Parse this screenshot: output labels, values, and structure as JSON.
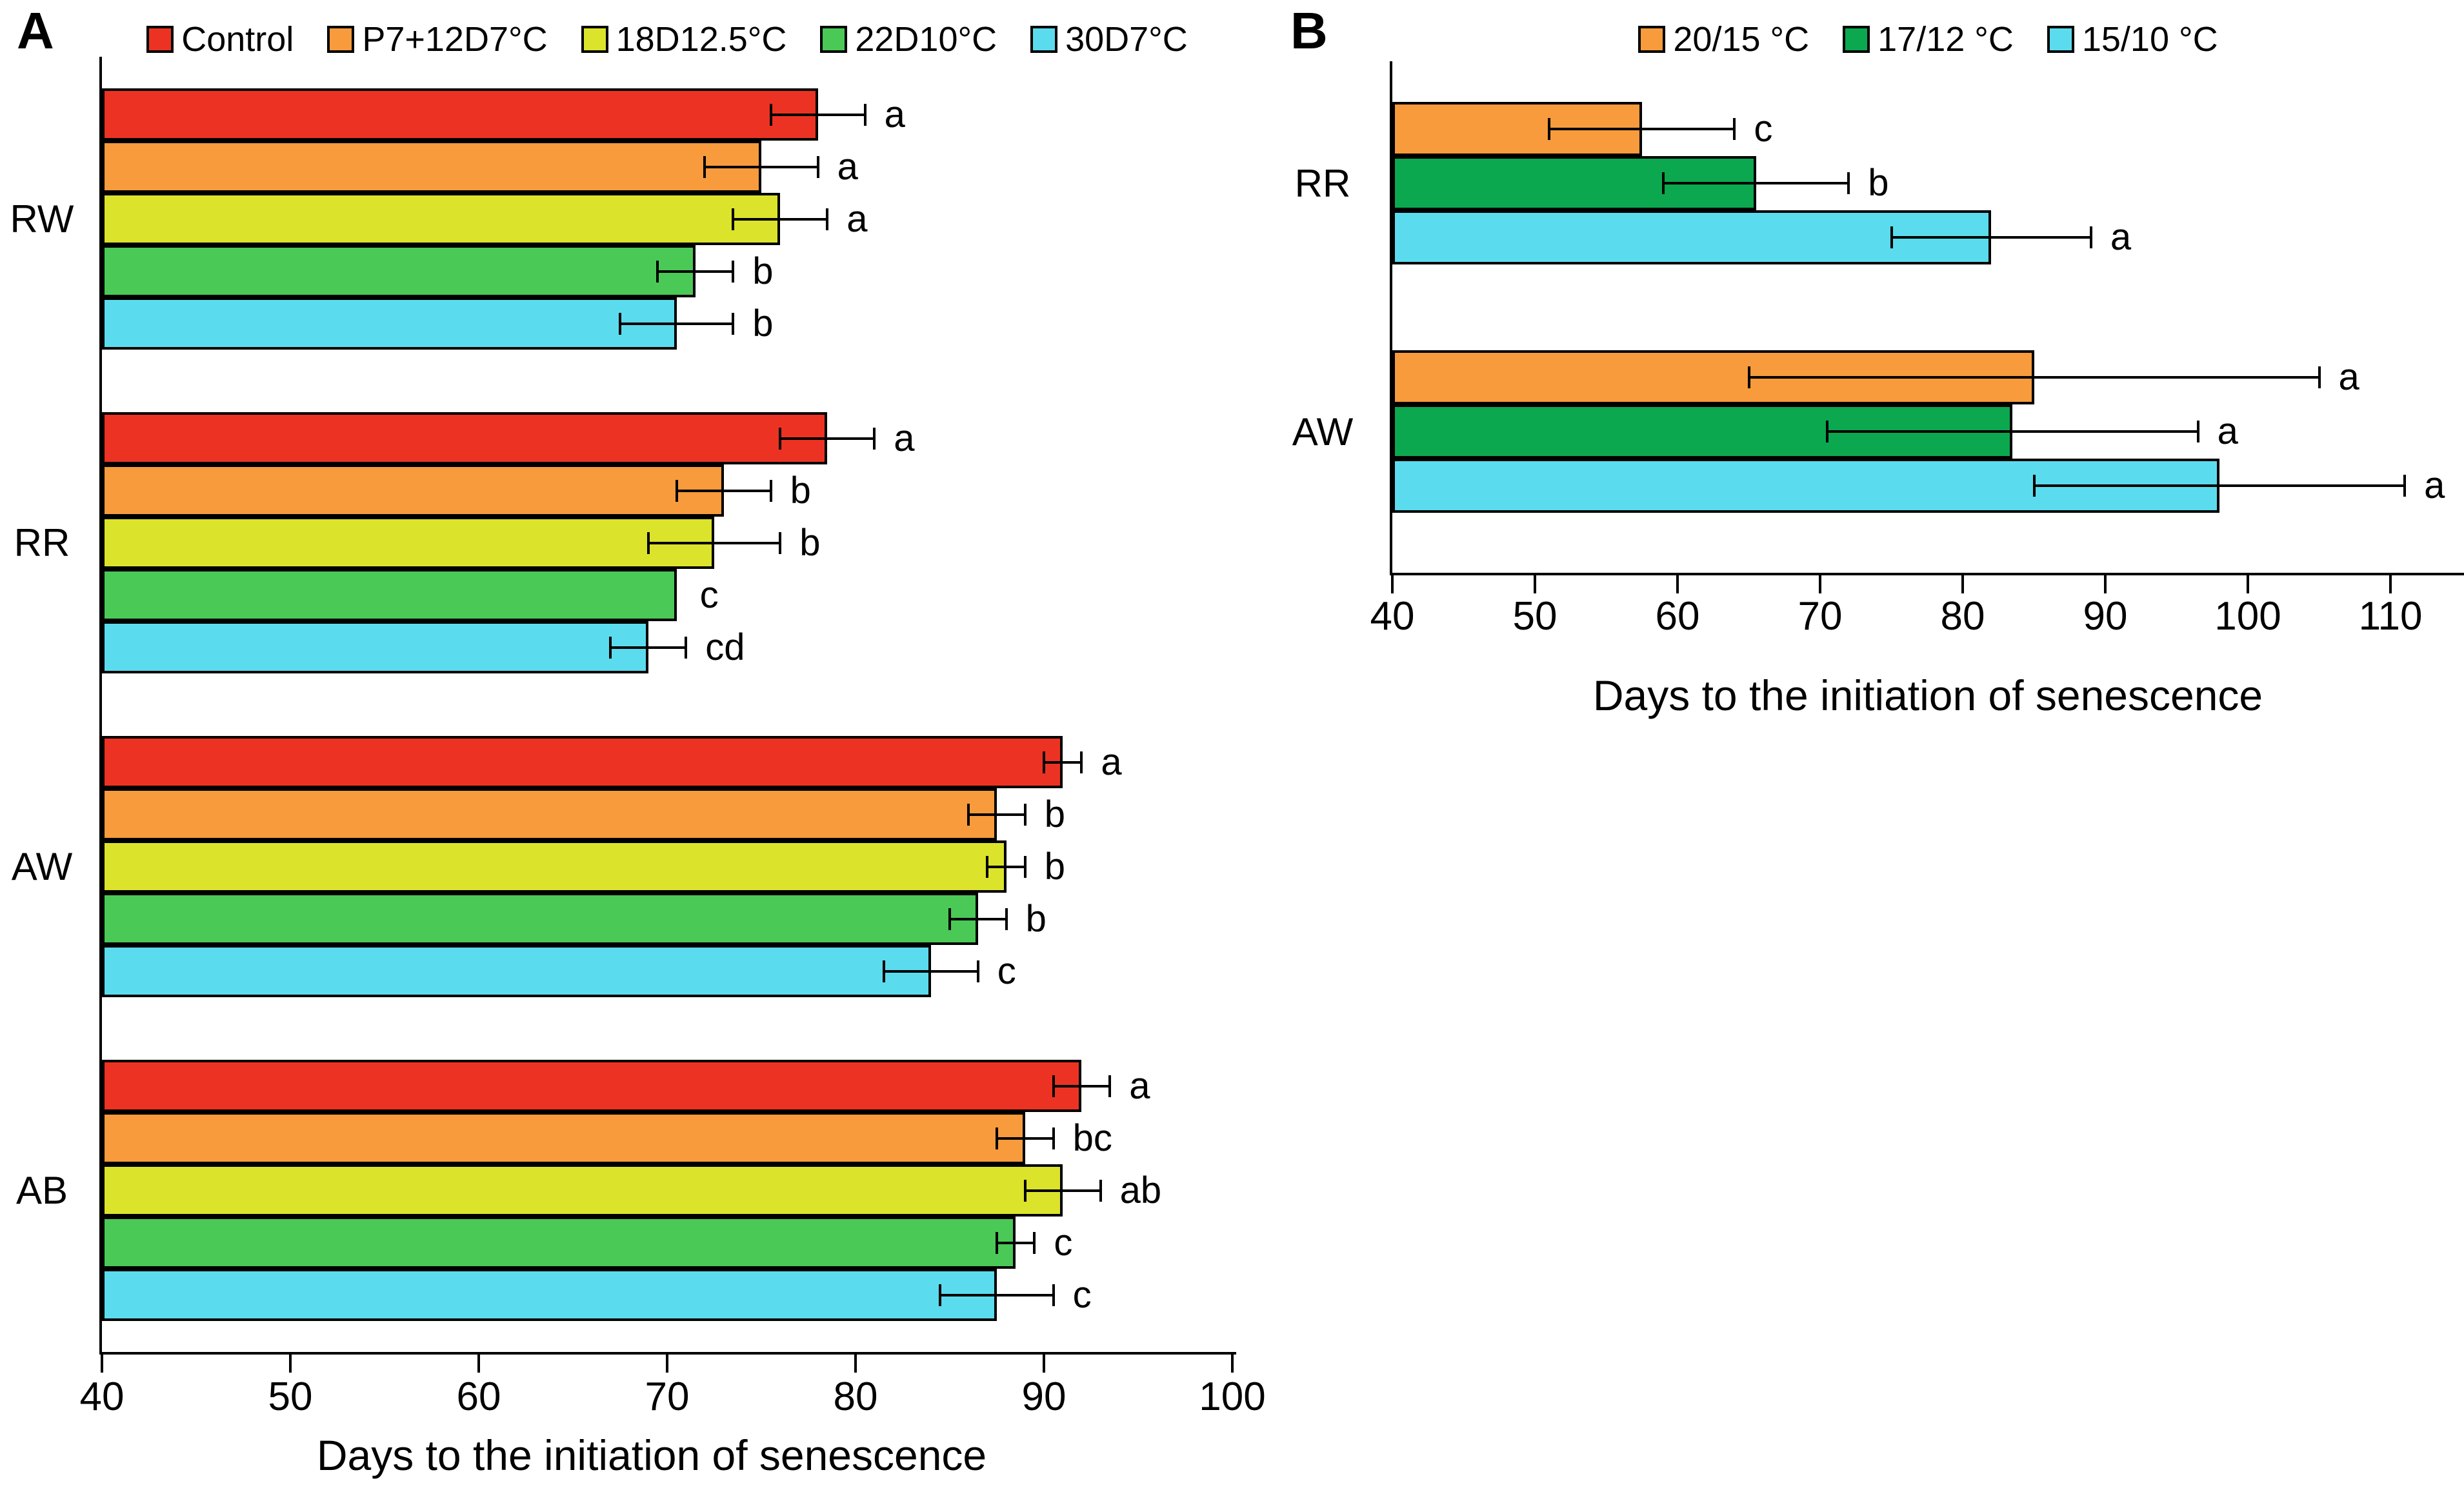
{
  "figure": {
    "panel_a_label": "A",
    "panel_b_label": "B",
    "xaxis_title": "Days to the initiation of senescence"
  },
  "chart_data": [
    {
      "type": "bar",
      "orientation": "horizontal",
      "panel_label": "A",
      "xlabel": "Days to the initiation of senescence",
      "xlim": [
        40,
        100
      ],
      "xticks": [
        40,
        50,
        60,
        70,
        80,
        90,
        100
      ],
      "grid": false,
      "legend_position": "top",
      "categories": [
        "RW",
        "RR",
        "AW",
        "AB"
      ],
      "series": [
        {
          "name": "Control",
          "color": "#EC3323",
          "values": [
            78,
            78.5,
            91,
            92
          ],
          "errors": [
            2.5,
            2.5,
            1,
            1.5
          ],
          "letters": [
            "a",
            "a",
            "a",
            "a"
          ]
        },
        {
          "name": "P7+12D7°C",
          "color": "#F79B3C",
          "values": [
            75,
            73,
            87.5,
            89
          ],
          "errors": [
            3,
            2.5,
            1.5,
            1.5
          ],
          "letters": [
            "a",
            "b",
            "b",
            "bc"
          ]
        },
        {
          "name": "18D12.5°C",
          "color": "#DCE32B",
          "values": [
            76,
            72.5,
            88,
            91
          ],
          "errors": [
            2.5,
            3.5,
            1,
            2
          ],
          "letters": [
            "a",
            "b",
            "b",
            "ab"
          ]
        },
        {
          "name": "22D10°C",
          "color": "#4AC956",
          "values": [
            71.5,
            70.5,
            86.5,
            88.5
          ],
          "errors": [
            2,
            0,
            1.5,
            1
          ],
          "letters": [
            "b",
            "c",
            "b",
            "c"
          ]
        },
        {
          "name": "30D7°C",
          "color": "#5BDCEE",
          "values": [
            70.5,
            69,
            84,
            87.5
          ],
          "errors": [
            3,
            2,
            2.5,
            3
          ],
          "letters": [
            "b",
            "cd",
            "c",
            "c"
          ]
        }
      ]
    },
    {
      "type": "bar",
      "orientation": "horizontal",
      "panel_label": "B",
      "xlabel": "Days to the initiation of senescence",
      "xlim": [
        40,
        115
      ],
      "xticks": [
        40,
        50,
        60,
        70,
        80,
        90,
        100,
        110
      ],
      "grid": false,
      "legend_position": "top",
      "categories": [
        "RR",
        "AW"
      ],
      "series": [
        {
          "name": "20/15 °C",
          "color": "#F79B3C",
          "values": [
            57.5,
            85
          ],
          "errors": [
            6.5,
            20
          ],
          "letters": [
            "c",
            "a"
          ]
        },
        {
          "name": "17/12 °C",
          "color": "#0BA850",
          "values": [
            65.5,
            83.5
          ],
          "errors": [
            6.5,
            13
          ],
          "letters": [
            "b",
            "a"
          ]
        },
        {
          "name": "15/10 °C",
          "color": "#5BDCEE",
          "values": [
            82,
            98
          ],
          "errors": [
            7,
            13
          ],
          "letters": [
            "a",
            "a"
          ]
        }
      ]
    }
  ]
}
